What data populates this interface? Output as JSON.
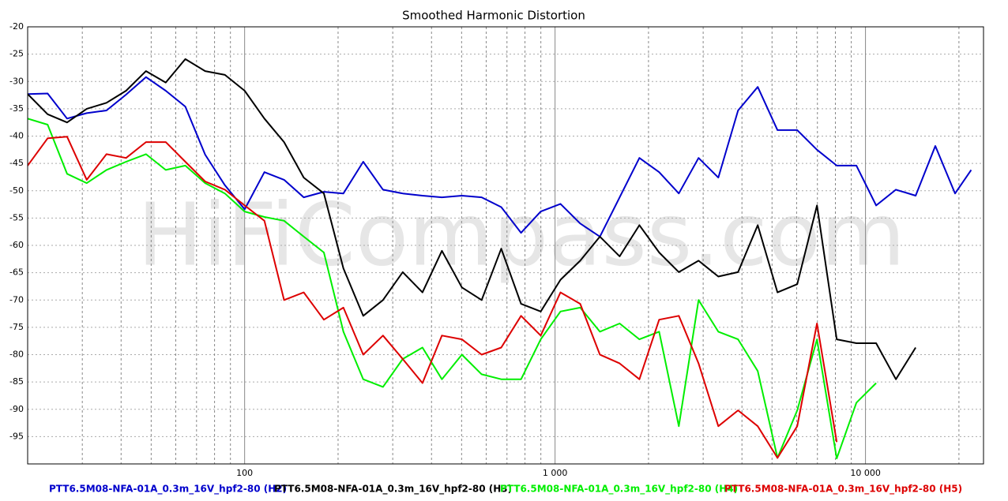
{
  "chart_data": {
    "type": "line",
    "title": "Smoothed Harmonic Distortion",
    "watermark": "HiFiCompass.com",
    "x_scale": "log",
    "grid": true,
    "xlim": [
      20,
      24000
    ],
    "xticks": [
      100,
      {
        "value": 1000,
        "label": "1 000"
      },
      {
        "value": 10000,
        "label": "10 000"
      }
    ],
    "x_minor_ticks": [
      30,
      40,
      50,
      60,
      70,
      80,
      90,
      200,
      300,
      400,
      500,
      600,
      700,
      800,
      900,
      2000,
      3000,
      4000,
      5000,
      6000,
      7000,
      8000,
      9000,
      20000
    ],
    "ylim": [
      -100,
      -20
    ],
    "yticks": [
      -20,
      -25,
      -30,
      -35,
      -40,
      -45,
      -50,
      -55,
      -60,
      -65,
      -70,
      -75,
      -80,
      -85,
      -90,
      -95
    ],
    "x": [
      20,
      23.2,
      26.8,
      31.0,
      35.9,
      41.5,
      48.1,
      55.7,
      64.4,
      74.6,
      86.4,
      100,
      115.8,
      134,
      155,
      180,
      208,
      241,
      279,
      323,
      374,
      432,
      501,
      580,
      671,
      777,
      899,
      1041,
      1205,
      1395,
      1615,
      1869,
      2164,
      2505,
      2900,
      3357,
      3886,
      4498,
      5207,
      6028,
      6978,
      8078,
      9351,
      10825,
      12531,
      14506,
      16792,
      19438,
      21900
    ],
    "series": [
      {
        "name": "PTT6.5M08-NFA-01A_0.3m_16V_hpf2-80 (H2)",
        "color": "#0000cc",
        "values": [
          -32.3,
          -32.2,
          -36.8,
          -35.8,
          -35.3,
          -32.4,
          -29.2,
          -31.7,
          -34.6,
          -43.4,
          -49,
          -53.4,
          -46.6,
          -48,
          -51.2,
          -50.2,
          -50.5,
          -44.7,
          -49.8,
          -50.5,
          -50.9,
          -51.2,
          -50.9,
          -51.2,
          -53,
          -57.7,
          -53.8,
          -52.4,
          -56,
          -58.4,
          -51.2,
          -44,
          -46.6,
          -50.5,
          -44,
          -47.6,
          -35.3,
          -31,
          -38.9,
          -38.9,
          -42.5,
          -45.4,
          -45.4,
          -52.7,
          -49.8,
          -50.9,
          -41.8,
          -50.5,
          -46.2
        ]
      },
      {
        "name": "PTT6.5M08-NFA-01A_0.3m_16V_hpf2-80 (H3)",
        "color": "#000000",
        "values": [
          -32.3,
          -36,
          -37.5,
          -35,
          -33.9,
          -31.7,
          -28.1,
          -30.2,
          -25.9,
          -28.1,
          -28.8,
          -31.7,
          -36.8,
          -41.1,
          -47.6,
          -50.5,
          -64.2,
          -72.9,
          -70,
          -64.9,
          -68.6,
          -61,
          -67.7,
          -70,
          -60.6,
          -70.7,
          -72.1,
          -66.3,
          -62.8,
          -58.4,
          -62,
          -56.3,
          -61.3,
          -64.9,
          -62.8,
          -65.7,
          -64.9,
          -56.3,
          -68.6,
          -67.1,
          -52.7,
          -77.2,
          -77.9,
          -77.9,
          -84.5,
          -78.7,
          null,
          null,
          null
        ]
      },
      {
        "name": "PTT6.5M08-NFA-01A_0.3m_16V_hpf2-80 (H4)",
        "color": "#00ee00",
        "values": [
          -36.8,
          -37.9,
          -46.9,
          -48.6,
          -46.2,
          -44.7,
          -43.3,
          -46.2,
          -45.4,
          -48.6,
          -50.5,
          -53.8,
          -54.8,
          -55.5,
          -58.4,
          -61.3,
          -75.8,
          -84.5,
          -85.9,
          -80.8,
          -78.7,
          -84.5,
          -80,
          -83.6,
          -84.5,
          -84.5,
          -77.2,
          -72.1,
          -71.4,
          -75.8,
          -74.3,
          -77.2,
          -75.8,
          -93.1,
          -70,
          -75.8,
          -77.2,
          -83,
          -98.9,
          -90.2,
          -77.2,
          -99,
          -88.8,
          -85.2,
          null,
          null,
          null,
          null,
          null
        ]
      },
      {
        "name": "PTT6.5M08-NFA-01A_0.3m_16V_hpf2-80 (H5)",
        "color": "#dd0000",
        "values": [
          -45.4,
          -40.4,
          -40.1,
          -48,
          -43.3,
          -44,
          -41.1,
          -41.1,
          -44.7,
          -48.3,
          -49.8,
          -52.7,
          -55.5,
          -70,
          -68.6,
          -73.6,
          -71.4,
          -80,
          -76.5,
          -80.8,
          -85.2,
          -76.5,
          -77.2,
          -80,
          -78.7,
          -72.9,
          -76.5,
          -68.6,
          -70.7,
          -80,
          -81.6,
          -84.5,
          -73.6,
          -72.9,
          -81.6,
          -93.1,
          -90.2,
          -93.1,
          -98.9,
          -93.1,
          -74.3,
          -96,
          null,
          null,
          null,
          null,
          null,
          null,
          null
        ]
      }
    ]
  }
}
